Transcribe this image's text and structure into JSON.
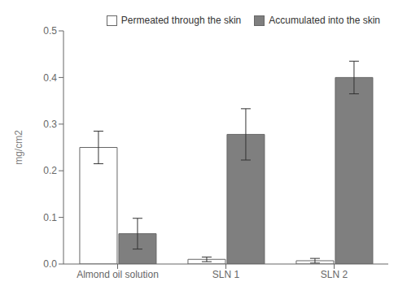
{
  "chart_data": {
    "type": "bar",
    "categories": [
      "Almond oil solution",
      "SLN 1",
      "SLN 2"
    ],
    "series": [
      {
        "name": "Permeated through the skin",
        "color": "#ffffff",
        "values": [
          0.25,
          0.01,
          0.007
        ],
        "errors": [
          0.035,
          0.005,
          0.005
        ]
      },
      {
        "name": "Accumulated into the skin",
        "color": "#7f7f7f",
        "values": [
          0.065,
          0.278,
          0.4
        ],
        "errors": [
          0.033,
          0.055,
          0.035
        ]
      }
    ],
    "ylabel": "mg/cm2",
    "ylim": [
      0,
      0.5
    ],
    "yticks": [
      {
        "value": 0,
        "label": "0.0"
      },
      0.1,
      0.2,
      0.3,
      0.4,
      0.5
    ],
    "legend": "upper right",
    "grid": false
  }
}
